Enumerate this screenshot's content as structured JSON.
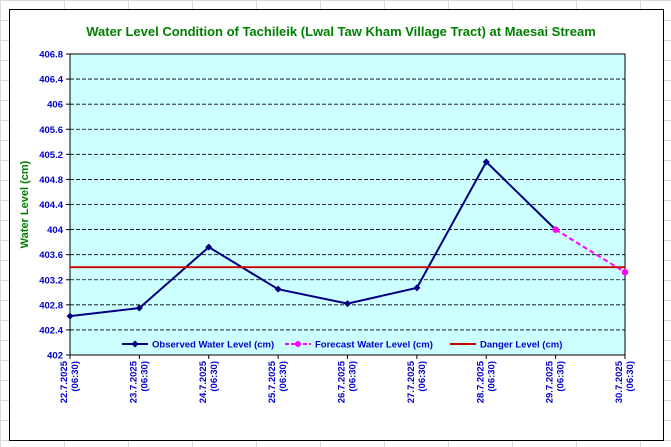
{
  "chart_data": {
    "type": "line",
    "title": "Water Level Condition of Tachileik (Lwal Taw Kham Village Tract) at Maesai Stream",
    "xlabel": "",
    "ylabel": "Water Level (cm)",
    "ylim": [
      402,
      406.8
    ],
    "yticks": [
      "402",
      "402.4",
      "402.8",
      "403.2",
      "403.6",
      "404",
      "404.4",
      "404.8",
      "405.2",
      "405.6",
      "406",
      "406.4",
      "406.8"
    ],
    "categories": [
      {
        "date": "22.7.2025",
        "time": "(06:30)"
      },
      {
        "date": "23.7.2025",
        "time": "(06:30)"
      },
      {
        "date": "24.7.2025",
        "time": "(06:30)"
      },
      {
        "date": "25.7.2025",
        "time": "(06:30)"
      },
      {
        "date": "26.7.2025",
        "time": "(06:30)"
      },
      {
        "date": "27.7.2025",
        "time": "(06:30)"
      },
      {
        "date": "28.7.2025",
        "time": "(06:30)"
      },
      {
        "date": "29.7.2025",
        "time": "(06:30)"
      },
      {
        "date": "30.7.2025",
        "time": "(06:30)"
      }
    ],
    "grid": true,
    "legend_position": "bottom-inside",
    "series": [
      {
        "name": "Observed Water Level (cm)",
        "style": "solid-diamond",
        "color": "#000080",
        "values": [
          402.62,
          402.75,
          403.72,
          403.05,
          402.82,
          403.07,
          405.08,
          404.0,
          null
        ]
      },
      {
        "name": "Forecast Water Level (cm)",
        "style": "dashed-circle",
        "color": "#ff00ff",
        "values": [
          null,
          null,
          null,
          null,
          null,
          null,
          null,
          404.0,
          403.32
        ]
      },
      {
        "name": "Danger Level (cm)",
        "style": "solid-line",
        "color": "#cc0000",
        "values": [
          403.4,
          403.4,
          403.4,
          403.4,
          403.4,
          403.4,
          403.4,
          403.4,
          403.4
        ]
      }
    ],
    "colors": {
      "title": "#008000",
      "ylabel": "#008000",
      "ticks": "#0000cc",
      "plot_background": "#ccffff"
    }
  }
}
